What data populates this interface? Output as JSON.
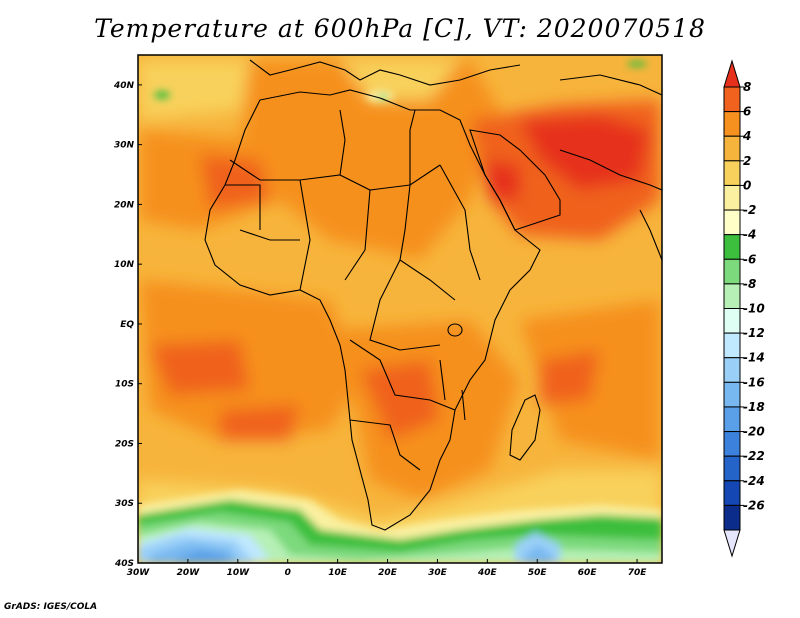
{
  "title": "Temperature at 600hPa [C], VT: 2020070518",
  "credit": "GrADS: IGES/COLA",
  "map": {
    "region": "Africa",
    "projection": "latlon",
    "lon_range": [
      -30,
      75
    ],
    "lat_range": [
      -40,
      45
    ],
    "lon_ticks": [
      {
        "value": -30,
        "label": "30W"
      },
      {
        "value": -20,
        "label": "20W"
      },
      {
        "value": -10,
        "label": "10W"
      },
      {
        "value": 0,
        "label": "0"
      },
      {
        "value": 10,
        "label": "10E"
      },
      {
        "value": 20,
        "label": "20E"
      },
      {
        "value": 30,
        "label": "30E"
      },
      {
        "value": 40,
        "label": "40E"
      },
      {
        "value": 50,
        "label": "50E"
      },
      {
        "value": 60,
        "label": "60E"
      },
      {
        "value": 70,
        "label": "70E"
      }
    ],
    "lat_ticks": [
      {
        "value": 40,
        "label": "40N"
      },
      {
        "value": 30,
        "label": "30N"
      },
      {
        "value": 20,
        "label": "20N"
      },
      {
        "value": 10,
        "label": "10N"
      },
      {
        "value": 0,
        "label": "EQ"
      },
      {
        "value": -10,
        "label": "10S"
      },
      {
        "value": -20,
        "label": "20S"
      },
      {
        "value": -30,
        "label": "30S"
      },
      {
        "value": -40,
        "label": "40S"
      }
    ]
  },
  "colorbar": {
    "levels": [
      "8",
      "6",
      "4",
      "2",
      "0",
      "-2",
      "-4",
      "-6",
      "-8",
      "-10",
      "-12",
      "-14",
      "-16",
      "-18",
      "-20",
      "-22",
      "-24",
      "-26"
    ],
    "colors": [
      "#e6301c",
      "#f0621e",
      "#f6901f",
      "#f7b43c",
      "#f8d15c",
      "#faf0a0",
      "#ffffc8",
      "#3cbf3c",
      "#7cd97c",
      "#b6f0b6",
      "#e0fff4",
      "#c0e8ff",
      "#9ad0f8",
      "#78b8f0",
      "#5aa0e8",
      "#3c82dc",
      "#2464c8",
      "#1446b4",
      "#0c2c8c",
      "#e6e6ff"
    ]
  }
}
